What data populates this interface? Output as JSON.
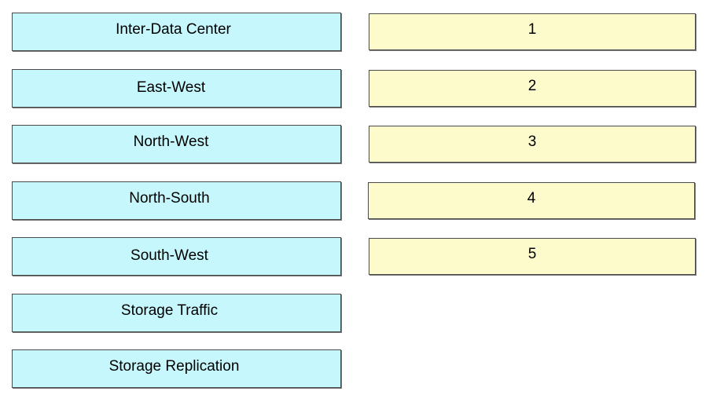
{
  "items": [
    {
      "label": "Inter-Data Center"
    },
    {
      "label": "East-West"
    },
    {
      "label": "North-West"
    },
    {
      "label": "North-South"
    },
    {
      "label": "South-West"
    },
    {
      "label": "Storage Traffic"
    },
    {
      "label": "Storage Replication"
    }
  ],
  "targets": [
    {
      "label": "1"
    },
    {
      "label": "2"
    },
    {
      "label": "3"
    },
    {
      "label": "4"
    },
    {
      "label": "5"
    }
  ],
  "colors": {
    "item_bg": "#c6f7fc",
    "target_bg": "#fdfbcb",
    "border": "#4a4a4a"
  }
}
